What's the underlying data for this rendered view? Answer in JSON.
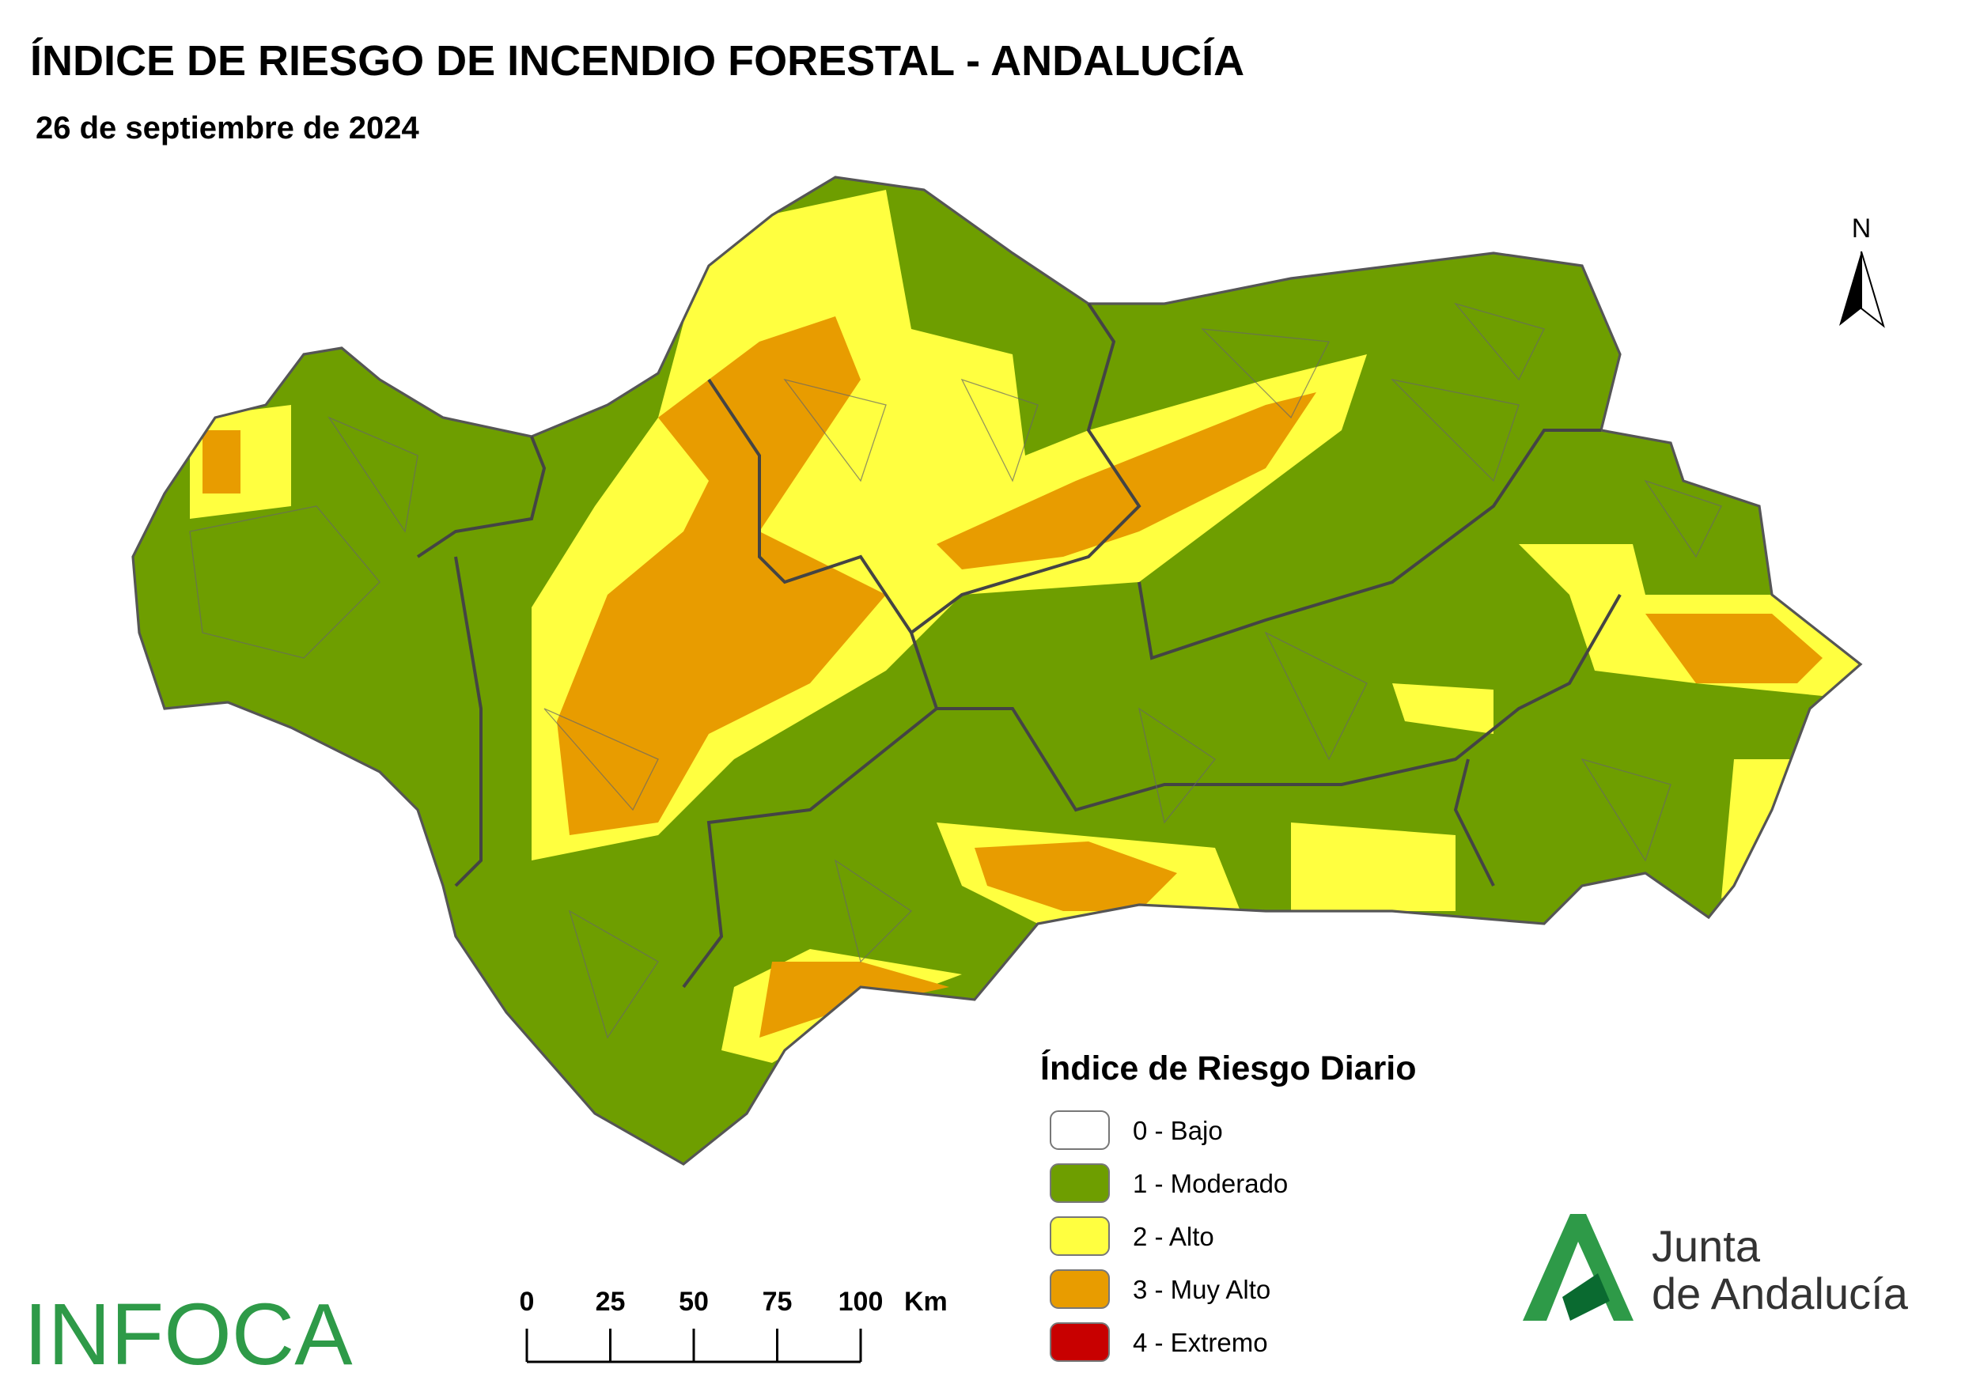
{
  "header": {
    "title": "ÍNDICE DE RIESGO DE INCENDIO FORESTAL - ANDALUCÍA",
    "subtitle": "26 de septiembre de 2024"
  },
  "north": "N",
  "legend": {
    "title": "Índice de Riesgo Diario",
    "items": [
      {
        "label": "0 - Bajo",
        "color": "#ffffff"
      },
      {
        "label": "1 - Moderado",
        "color": "#6e9e00"
      },
      {
        "label": "2 - Alto",
        "color": "#ffff40"
      },
      {
        "label": "3 - Muy Alto",
        "color": "#e89c00"
      },
      {
        "label": "4 - Extremo",
        "color": "#c80000"
      }
    ]
  },
  "scale_bar": {
    "ticks": [
      0,
      25,
      50,
      75,
      100
    ],
    "unit": "Km"
  },
  "logos": {
    "infoca": "INFOCA",
    "junta_line1": "Junta",
    "junta_line2": "de Andalucía"
  }
}
